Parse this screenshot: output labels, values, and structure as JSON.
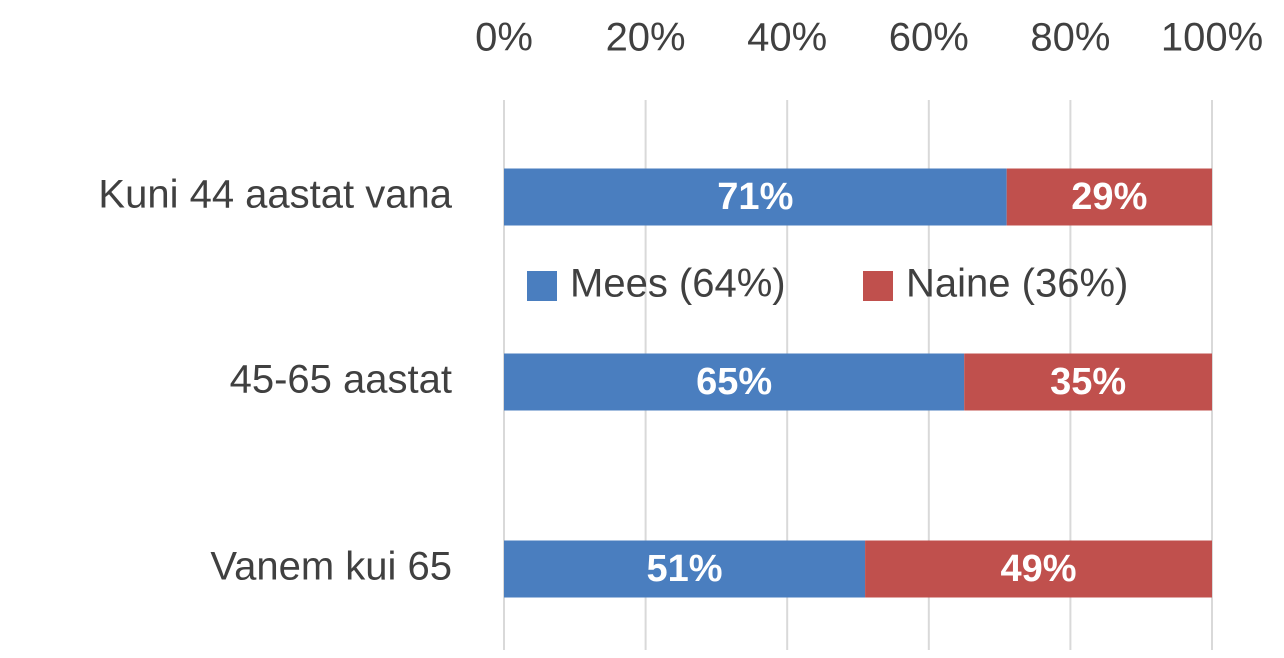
{
  "chart_data": {
    "type": "stacked_bar_horizontal",
    "categories": [
      "Kuni 44 aastat vana",
      "45-65 aastat",
      "Vanem kui 65"
    ],
    "series": [
      {
        "name": "Mees (64%)",
        "color": "#4a7ebf",
        "values": [
          71,
          65,
          51
        ],
        "value_labels": [
          "71%",
          "65%",
          "51%"
        ]
      },
      {
        "name": "Naine (36%)",
        "color": "#c0504d",
        "values": [
          29,
          35,
          49
        ],
        "value_labels": [
          "29%",
          "35%",
          "49%"
        ]
      }
    ],
    "xlim": [
      0,
      100
    ],
    "xticks": [
      {
        "value": 0,
        "label": "0%"
      },
      {
        "value": 20,
        "label": "20%"
      },
      {
        "value": 40,
        "label": "40%"
      },
      {
        "value": 60,
        "label": "60%"
      },
      {
        "value": 80,
        "label": "80%"
      },
      {
        "value": 100,
        "label": "100%"
      }
    ],
    "grid": true
  }
}
